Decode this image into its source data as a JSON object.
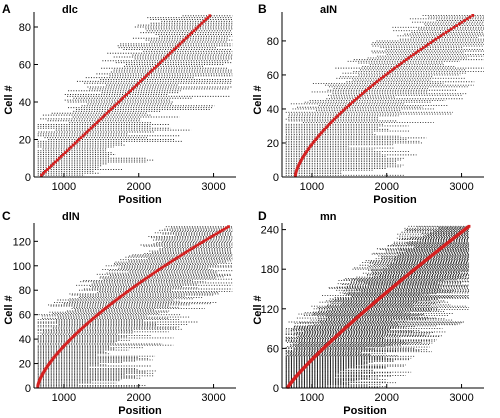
{
  "figure": {
    "panels_order": [
      "A",
      "B",
      "C",
      "D"
    ]
  },
  "chart_data": [
    {
      "letter": "A",
      "title": "dlc",
      "type": "scatter",
      "xlabel": "Position",
      "ylabel": "Cell #",
      "xlim": [
        600,
        3300
      ],
      "ylim": [
        0,
        88
      ],
      "xticks": [
        1000,
        2000,
        3000
      ],
      "yticks": [
        0,
        20,
        40,
        60,
        80
      ],
      "n_cells": 86,
      "red_series_color": "#d42020",
      "raster_color": "#000000",
      "soma_x_range": [
        700,
        2950
      ],
      "soma_curve": "linear",
      "raster_extent_x": [
        650,
        3250
      ]
    },
    {
      "letter": "B",
      "title": "aIN",
      "type": "scatter",
      "xlabel": "Position",
      "ylabel": "Cell #",
      "xlim": [
        600,
        3300
      ],
      "ylim": [
        0,
        97
      ],
      "xticks": [
        1000,
        2000,
        3000
      ],
      "yticks": [
        0,
        20,
        40,
        60,
        80
      ],
      "n_cells": 95,
      "red_series_color": "#d42020",
      "raster_color": "#000000",
      "soma_x_range": [
        780,
        3150
      ],
      "soma_curve": "concave",
      "raster_extent_x": [
        650,
        3300
      ]
    },
    {
      "letter": "C",
      "title": "dlN",
      "type": "scatter",
      "xlabel": "Position",
      "ylabel": "Cell #",
      "xlim": [
        600,
        3300
      ],
      "ylim": [
        0,
        135
      ],
      "xticks": [
        1000,
        2000,
        3000
      ],
      "yticks": [
        0,
        20,
        40,
        60,
        80,
        100,
        120
      ],
      "n_cells": 132,
      "red_series_color": "#d42020",
      "raster_color": "#000000",
      "soma_x_range": [
        650,
        3200
      ],
      "soma_curve": "concave",
      "raster_extent_x": [
        650,
        3250
      ]
    },
    {
      "letter": "D",
      "title": "mn",
      "type": "scatter",
      "xlabel": "Position",
      "ylabel": "Cell #",
      "xlim": [
        600,
        3300
      ],
      "ylim": [
        0,
        250
      ],
      "xticks": [
        1000,
        2000,
        3000
      ],
      "yticks": [
        0,
        60,
        120,
        180,
        240
      ],
      "n_cells": 245,
      "red_series_color": "#d42020",
      "raster_color": "#000000",
      "soma_x_range": [
        680,
        3100
      ],
      "soma_curve": "slightly-concave",
      "raster_extent_x": [
        650,
        3100
      ]
    }
  ]
}
